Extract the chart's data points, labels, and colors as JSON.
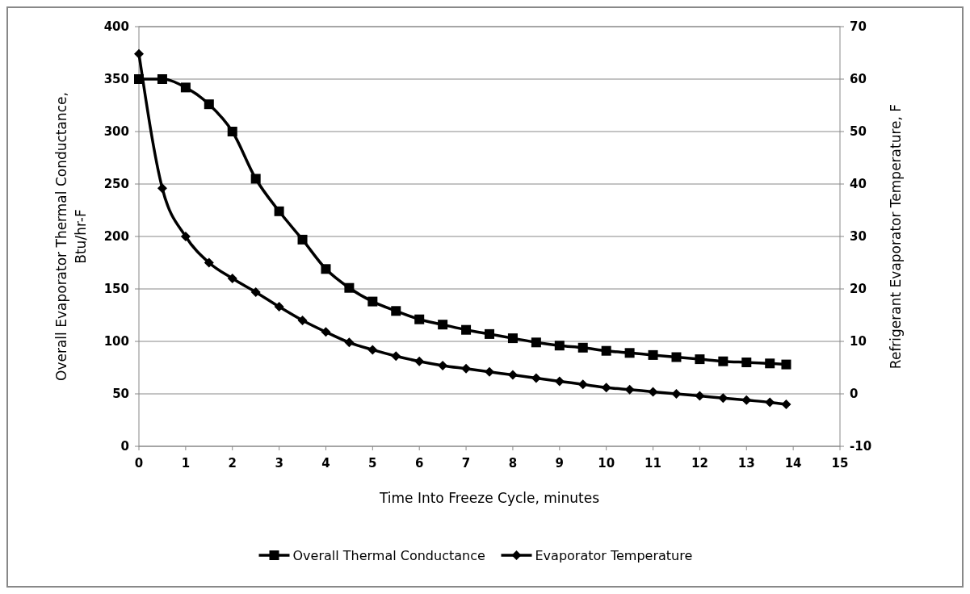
{
  "chart_data": {
    "type": "line",
    "xlabel": "Time Into Freeze Cycle, minutes",
    "ylabel": "Overall Evaporator Thermal Conductance, Btu/hr-F",
    "y2label": "Refrigerant Evaporator Temperature, F",
    "xlim": [
      0,
      15
    ],
    "xticks": [
      0,
      1,
      2,
      3,
      4,
      5,
      6,
      7,
      8,
      9,
      10,
      11,
      12,
      13,
      14,
      15
    ],
    "ylim": [
      0,
      400
    ],
    "yticks": [
      0,
      50,
      100,
      150,
      200,
      250,
      300,
      350,
      400
    ],
    "y2lim": [
      -10,
      70
    ],
    "y2ticks": [
      -10,
      0,
      10,
      20,
      30,
      40,
      50,
      60,
      70
    ],
    "grid": "y",
    "legend": "bottom",
    "line_style": "solid",
    "series": [
      {
        "name": "Overall Thermal Conductance",
        "color": "#000000",
        "marker": "square",
        "x": [
          0,
          0.5,
          1,
          1.5,
          2,
          2.5,
          3,
          3.5,
          4,
          4.5,
          5,
          5.5,
          6,
          6.5,
          7,
          7.5,
          8,
          8.5,
          9,
          9.5,
          10,
          10.5,
          11,
          11.5,
          12,
          12.5,
          13,
          13.5,
          13.85
        ],
        "values": [
          350,
          350,
          342,
          326,
          300,
          255,
          224,
          197,
          169,
          151,
          138,
          129,
          121,
          116,
          111,
          107,
          103,
          99,
          96,
          94,
          91,
          89,
          87,
          85,
          83,
          81,
          80,
          79,
          78
        ]
      },
      {
        "name": "Evaporator Temperature",
        "color": "#000000",
        "marker": "diamond",
        "axis": "y2",
        "x": [
          0,
          0.5,
          1,
          1.5,
          2,
          2.5,
          3,
          3.5,
          4,
          4.5,
          5,
          5.5,
          6,
          6.5,
          7,
          7.5,
          8,
          8.5,
          9,
          9.5,
          10,
          10.5,
          11,
          11.5,
          12,
          12.5,
          13,
          13.5,
          13.85
        ],
        "values": [
          64.8,
          39.2,
          30,
          25,
          22,
          19.4,
          16.6,
          14,
          11.8,
          9.8,
          8.4,
          7.2,
          6.2,
          5.4,
          4.8,
          4.2,
          3.6,
          3,
          2.4,
          1.8,
          1.2,
          0.8,
          0.4,
          0,
          -0.4,
          -0.8,
          -1.2,
          -1.6,
          -2
        ]
      }
    ]
  }
}
